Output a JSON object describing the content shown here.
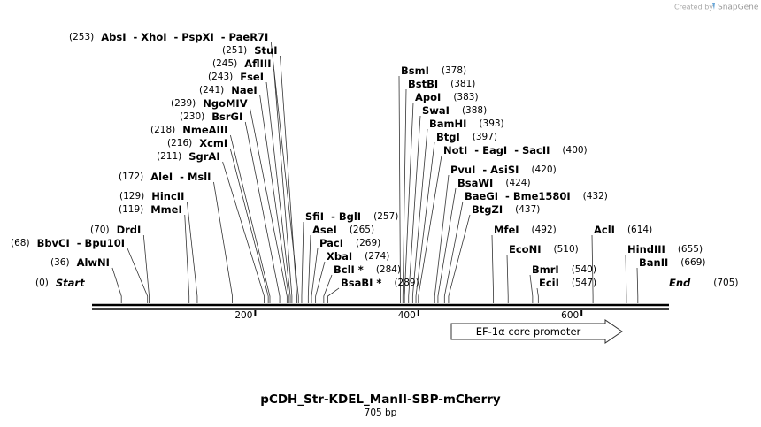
{
  "watermark": {
    "prefix": "Created by",
    "brand": "SnapGene"
  },
  "map": {
    "title": "pCDH_Str-KDEL_ManII-SBP-mCherry",
    "length": "705 bp",
    "ticks": [
      200,
      400,
      600
    ],
    "feature": "EF-1α core promoter",
    "sites": [
      {
        "position": "(253)",
        "names": "AbsI  - XhoI  - PspXI  - PaeR7I"
      },
      {
        "position": "(251)",
        "names": "StuI"
      },
      {
        "position": "(245)",
        "names": "AflIII"
      },
      {
        "position": "(243)",
        "names": "FseI"
      },
      {
        "position": "(241)",
        "names": "NaeI"
      },
      {
        "position": "(239)",
        "names": "NgoMIV"
      },
      {
        "position": "(230)",
        "names": "BsrGI"
      },
      {
        "position": "(218)",
        "names": "NmeAIII"
      },
      {
        "position": "(216)",
        "names": "XcmI"
      },
      {
        "position": "(211)",
        "names": "SgrAI"
      },
      {
        "position": "(172)",
        "names": "AleI  - MslI"
      },
      {
        "position": "(129)",
        "names": "HincII"
      },
      {
        "position": "(119)",
        "names": "MmeI"
      },
      {
        "position": "(70)",
        "names": "DrdI"
      },
      {
        "position": "(68)",
        "names": "BbvCI  - Bpu10I"
      },
      {
        "position": "(36)",
        "names": "AlwNI"
      },
      {
        "position": "(0)",
        "names": "Start"
      },
      {
        "position": "(257)",
        "names": "SfiI  - BglI"
      },
      {
        "position": "(265)",
        "names": "AseI"
      },
      {
        "position": "(269)",
        "names": "PacI"
      },
      {
        "position": "(274)",
        "names": "XbaI"
      },
      {
        "position": "(284)",
        "names": "BclI *"
      },
      {
        "position": "(289)",
        "names": "BsaBI *"
      },
      {
        "position": "(378)",
        "names": "BsmI"
      },
      {
        "position": "(381)",
        "names": "BstBI"
      },
      {
        "position": "(383)",
        "names": "ApoI"
      },
      {
        "position": "(388)",
        "names": "SwaI"
      },
      {
        "position": "(393)",
        "names": "BamHI"
      },
      {
        "position": "(397)",
        "names": "BtgI"
      },
      {
        "position": "(400)",
        "names": "NotI  - EagI  - SacII"
      },
      {
        "position": "(420)",
        "names": "PvuI  - AsiSI"
      },
      {
        "position": "(424)",
        "names": "BsaWI"
      },
      {
        "position": "(432)",
        "names": "BaeGI  - Bme1580I"
      },
      {
        "position": "(437)",
        "names": "BtgZI"
      },
      {
        "position": "(492)",
        "names": "MfeI"
      },
      {
        "position": "(510)",
        "names": "EcoNI"
      },
      {
        "position": "(540)",
        "names": "BmrI"
      },
      {
        "position": "(547)",
        "names": "EciI"
      },
      {
        "position": "(614)",
        "names": "AclI"
      },
      {
        "position": "(655)",
        "names": "HindIII"
      },
      {
        "position": "(669)",
        "names": "BanII"
      },
      {
        "position": "(705)",
        "names": "End"
      }
    ]
  }
}
